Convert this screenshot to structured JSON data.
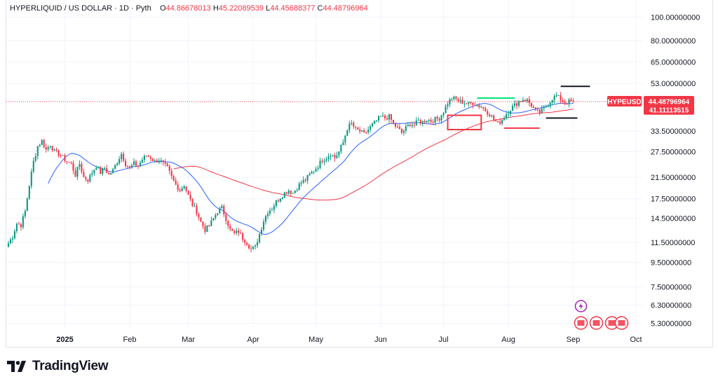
{
  "header": {
    "symbol": "HYPERLIQUID / US DOLLAR · 1D · Pyth",
    "open_label": "O",
    "open": "44.86678013",
    "high_label": "H",
    "high": "45.22089539",
    "low_label": "L",
    "low": "44.45688377",
    "close_label": "C",
    "close": "44.48796964"
  },
  "price_badges": {
    "ticker": "HYPEUSD",
    "last_price": "44.48796964",
    "ma_value": "41.11113515"
  },
  "brand": {
    "name": "TradingView"
  },
  "colors": {
    "up": "#089981",
    "down": "#f23645",
    "ma_fast": "#2962ff",
    "ma_slow": "#f23645",
    "grid": "#f0f3fa",
    "text": "#131722"
  },
  "chart_data": {
    "type": "candlestick",
    "title": "HYPERLIQUID / US DOLLAR · 1D · Pyth",
    "y_scale": "log",
    "ylim": [
      5.0,
      118
    ],
    "y_ticks": [
      {
        "value": 100,
        "label": "100.00000000"
      },
      {
        "value": 80,
        "label": "80.00000000"
      },
      {
        "value": 65,
        "label": "65.00000000"
      },
      {
        "value": 53,
        "label": "53.00000000"
      },
      {
        "value": 33.5,
        "label": "33.50000000"
      },
      {
        "value": 27.5,
        "label": "27.50000000"
      },
      {
        "value": 21.5,
        "label": "21.50000000"
      },
      {
        "value": 17.5,
        "label": "17.50000000"
      },
      {
        "value": 14.5,
        "label": "14.50000000"
      },
      {
        "value": 11.5,
        "label": "11.50000000"
      },
      {
        "value": 9.5,
        "label": "9.50000000"
      },
      {
        "value": 7.5,
        "label": "7.50000000"
      },
      {
        "value": 6.3,
        "label": "6.30000000"
      },
      {
        "value": 5.3,
        "label": "5.30000000"
      }
    ],
    "x_ticks": [
      {
        "label": "2025",
        "day": 0,
        "bold": true
      },
      {
        "label": "Feb",
        "day": 31
      },
      {
        "label": "Mar",
        "day": 59
      },
      {
        "label": "Apr",
        "day": 90
      },
      {
        "label": "May",
        "day": 120
      },
      {
        "label": "Jun",
        "day": 151
      },
      {
        "label": "Jul",
        "day": 181
      },
      {
        "label": "Aug",
        "day": 212
      },
      {
        "label": "Sep",
        "day": 243
      },
      {
        "label": "Oct",
        "day": 273
      }
    ],
    "day_range": [
      -28,
      276
    ],
    "close_anchors": [
      [
        -27,
        11.4
      ],
      [
        -25,
        12.2
      ],
      [
        -23,
        13.8
      ],
      [
        -21,
        13.6
      ],
      [
        -19,
        15.5
      ],
      [
        -17,
        20.0
      ],
      [
        -15,
        25.0
      ],
      [
        -13,
        29.0
      ],
      [
        -11,
        30.5
      ],
      [
        -9,
        28.0
      ],
      [
        -7,
        29.5
      ],
      [
        -5,
        27.5
      ],
      [
        -3,
        27.0
      ],
      [
        -1,
        26.0
      ],
      [
        1,
        25.0
      ],
      [
        3,
        24.5
      ],
      [
        5,
        22.0
      ],
      [
        7,
        24.5
      ],
      [
        9,
        21.5
      ],
      [
        11,
        21.0
      ],
      [
        13,
        22.5
      ],
      [
        15,
        24.0
      ],
      [
        17,
        22.5
      ],
      [
        19,
        23.5
      ],
      [
        21,
        22.0
      ],
      [
        23,
        23.0
      ],
      [
        25,
        25.0
      ],
      [
        27,
        27.0
      ],
      [
        29,
        24.5
      ],
      [
        31,
        23.5
      ],
      [
        33,
        24.5
      ],
      [
        35,
        24.0
      ],
      [
        37,
        25.5
      ],
      [
        39,
        26.5
      ],
      [
        41,
        26.0
      ],
      [
        43,
        25.0
      ],
      [
        45,
        25.5
      ],
      [
        47,
        24.5
      ],
      [
        49,
        23.5
      ],
      [
        51,
        21.5
      ],
      [
        53,
        20.0
      ],
      [
        55,
        19.0
      ],
      [
        57,
        20.0
      ],
      [
        59,
        18.0
      ],
      [
        61,
        16.5
      ],
      [
        63,
        15.5
      ],
      [
        65,
        14.0
      ],
      [
        67,
        13.0
      ],
      [
        69,
        13.5
      ],
      [
        71,
        14.5
      ],
      [
        73,
        15.5
      ],
      [
        75,
        16.0
      ],
      [
        77,
        14.5
      ],
      [
        79,
        13.0
      ],
      [
        81,
        12.5
      ],
      [
        83,
        12.8
      ],
      [
        85,
        12.0
      ],
      [
        87,
        11.5
      ],
      [
        89,
        10.8
      ],
      [
        91,
        11.0
      ],
      [
        93,
        12.5
      ],
      [
        95,
        14.2
      ],
      [
        97,
        15.5
      ],
      [
        99,
        16.0
      ],
      [
        101,
        17.0
      ],
      [
        103,
        17.8
      ],
      [
        105,
        18.5
      ],
      [
        107,
        19.0
      ],
      [
        109,
        18.5
      ],
      [
        111,
        19.5
      ],
      [
        113,
        20.5
      ],
      [
        115,
        21.0
      ],
      [
        117,
        22.0
      ],
      [
        119,
        23.0
      ],
      [
        121,
        24.0
      ],
      [
        123,
        25.5
      ],
      [
        125,
        26.0
      ],
      [
        127,
        27.0
      ],
      [
        129,
        26.0
      ],
      [
        131,
        27.5
      ],
      [
        133,
        30.0
      ],
      [
        135,
        34.5
      ],
      [
        137,
        36.0
      ],
      [
        139,
        34.0
      ],
      [
        141,
        33.5
      ],
      [
        143,
        32.5
      ],
      [
        145,
        34.0
      ],
      [
        147,
        35.5
      ],
      [
        149,
        37.0
      ],
      [
        151,
        38.5
      ],
      [
        153,
        38.0
      ],
      [
        155,
        38.5
      ],
      [
        157,
        36.0
      ],
      [
        159,
        34.5
      ],
      [
        161,
        33.0
      ],
      [
        163,
        34.5
      ],
      [
        165,
        36.0
      ],
      [
        167,
        35.5
      ],
      [
        169,
        37.0
      ],
      [
        171,
        36.5
      ],
      [
        173,
        37.5
      ],
      [
        175,
        37.0
      ],
      [
        177,
        37.5
      ],
      [
        179,
        38.0
      ],
      [
        181,
        40.5
      ],
      [
        183,
        44.0
      ],
      [
        185,
        46.0
      ],
      [
        187,
        45.5
      ],
      [
        189,
        44.5
      ],
      [
        191,
        44.0
      ],
      [
        193,
        43.5
      ],
      [
        195,
        44.0
      ],
      [
        197,
        43.0
      ],
      [
        199,
        42.5
      ],
      [
        201,
        41.0
      ],
      [
        203,
        39.5
      ],
      [
        205,
        37.5
      ],
      [
        207,
        36.0
      ],
      [
        209,
        37.5
      ],
      [
        211,
        39.5
      ],
      [
        213,
        41.5
      ],
      [
        215,
        43.0
      ],
      [
        217,
        44.5
      ],
      [
        219,
        45.5
      ],
      [
        221,
        45.0
      ],
      [
        223,
        43.0
      ],
      [
        225,
        40.5
      ],
      [
        227,
        40.0
      ],
      [
        229,
        41.5
      ],
      [
        231,
        43.5
      ],
      [
        233,
        46.0
      ],
      [
        235,
        47.0
      ],
      [
        237,
        45.5
      ],
      [
        239,
        44.0
      ],
      [
        241,
        44.5
      ],
      [
        243,
        44.487
      ]
    ],
    "series": [
      {
        "name": "Daily candles",
        "type": "candlestick"
      },
      {
        "name": "Moving average (fast)",
        "type": "line",
        "color": "#2962ff"
      },
      {
        "name": "Moving average (slow)",
        "type": "line",
        "color": "#f23645",
        "last_value": 41.11113515
      }
    ],
    "annotations": [
      {
        "type": "rectangle",
        "color": "#f23645",
        "from_day": 183,
        "to_day": 199,
        "low": 34.0,
        "high": 39.0
      },
      {
        "type": "segment",
        "color": "#00e676",
        "from_day": 197,
        "to_day": 215,
        "price": 46.0
      },
      {
        "type": "segment",
        "color": "#f23645",
        "from_day": 210,
        "to_day": 227,
        "price": 34.5
      },
      {
        "type": "segment",
        "color": "#131722",
        "from_day": 237,
        "to_day": 251,
        "price": 51.5
      },
      {
        "type": "segment",
        "color": "#131722",
        "from_day": 230,
        "to_day": 245,
        "price": 38.0
      }
    ],
    "last_price_line": 44.48796964
  }
}
